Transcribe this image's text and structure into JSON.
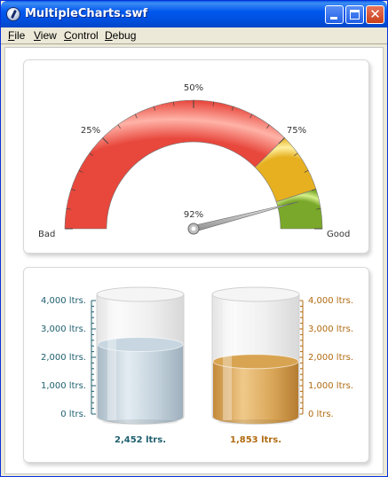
{
  "window": {
    "title": "MultipleCharts.swf"
  },
  "menu": [
    "File",
    "View",
    "Control",
    "Debug"
  ],
  "gauge": {
    "value_label": "92%",
    "value": 92,
    "min_label": "Bad",
    "max_label": "Good",
    "tick_labels": [
      "25%",
      "50%",
      "75%"
    ],
    "bands": [
      {
        "from": 0,
        "to": 75,
        "color": "#f06a5f"
      },
      {
        "from": 75,
        "to": 90,
        "color": "#f2c744"
      },
      {
        "from": 90,
        "to": 100,
        "color": "#9bc53d"
      }
    ]
  },
  "cylinders": {
    "axis_labels": [
      "4,000 ltrs.",
      "3,000 ltrs.",
      "2,000 ltrs.",
      "1,000 ltrs.",
      "0 ltrs."
    ],
    "max": 4000,
    "left": {
      "value": 2452,
      "value_label": "2,452 ltrs.",
      "color": "#c7d6e0",
      "axis_color": "#1e5f6e"
    },
    "right": {
      "value": 1853,
      "value_label": "1,853 ltrs.",
      "color": "#d8a452",
      "axis_color": "#b06a10"
    }
  }
}
